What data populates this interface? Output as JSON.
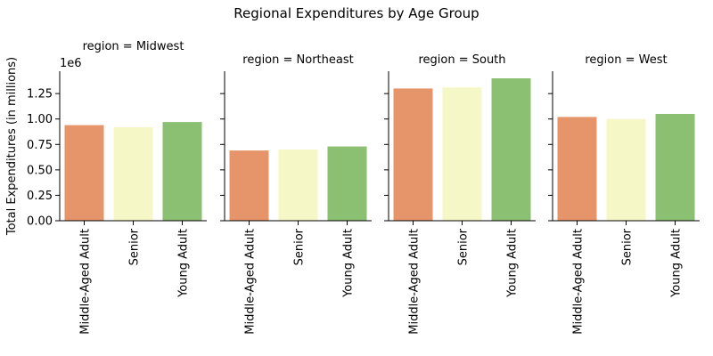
{
  "chart_data": {
    "type": "bar",
    "title": "Regional Expenditures by Age Group",
    "ylabel": "Total Expenditures (in millions)",
    "ylim": [
      0,
      1.47
    ],
    "yticks": [
      "0.00",
      "0.25",
      "0.50",
      "0.75",
      "1.00",
      "1.25"
    ],
    "y_multiplier": "1e6",
    "categories": [
      "Middle-Aged Adult",
      "Senior",
      "Young Adult"
    ],
    "colors": [
      "#e6956a",
      "#f6f7c6",
      "#8bbf72"
    ],
    "facets": [
      {
        "label": "region = Midwest",
        "values": [
          0.94,
          0.92,
          0.97
        ]
      },
      {
        "label": "region = Northeast",
        "values": [
          0.69,
          0.7,
          0.73
        ]
      },
      {
        "label": "region = South",
        "values": [
          1.3,
          1.31,
          1.4
        ]
      },
      {
        "label": "region = West",
        "values": [
          1.02,
          1.0,
          1.05
        ]
      }
    ],
    "grid": false,
    "legend": "none"
  }
}
